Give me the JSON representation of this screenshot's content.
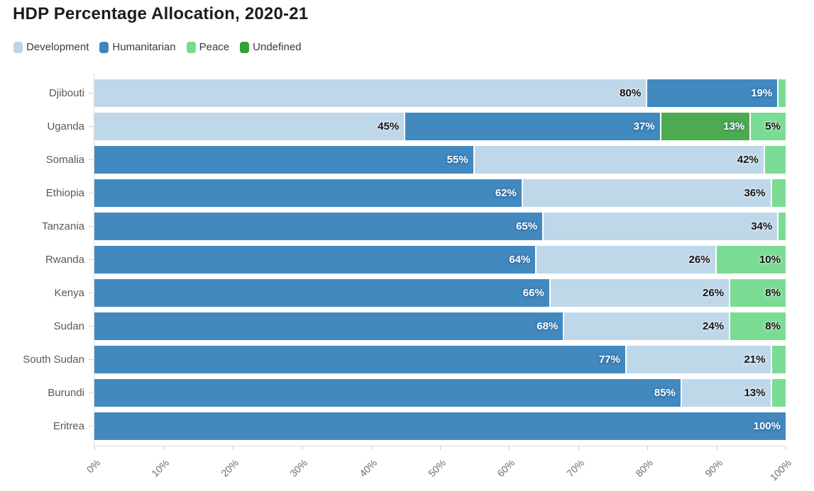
{
  "title": "HDP Percentage Allocation, 2020-21",
  "legend": [
    {
      "key": "development",
      "label": "Development",
      "color": "#b9d5e9"
    },
    {
      "key": "humanitarian",
      "label": "Humanitarian",
      "color": "#3d86c0"
    },
    {
      "key": "peace",
      "label": "Peace",
      "color": "#74db8f"
    },
    {
      "key": "undefined",
      "label": "Undefined",
      "color": "#34a038"
    }
  ],
  "series_colors": {
    "development": "#bed8ea",
    "humanitarian": "#4289c0",
    "peace": "#7adc93",
    "undefined": "#4cab51"
  },
  "series_label_colors": {
    "development": "dark",
    "humanitarian": "light",
    "peace": "dark",
    "undefined": "light"
  },
  "rows": [
    {
      "country": "Djibouti",
      "segments": [
        {
          "series": "development",
          "pct": 80,
          "label": "80%"
        },
        {
          "series": "humanitarian",
          "pct": 19,
          "label": "19%"
        },
        {
          "series": "peace",
          "pct": 1,
          "label": ""
        }
      ]
    },
    {
      "country": "Uganda",
      "segments": [
        {
          "series": "development",
          "pct": 45,
          "label": "45%"
        },
        {
          "series": "humanitarian",
          "pct": 37,
          "label": "37%"
        },
        {
          "series": "undefined",
          "pct": 13,
          "label": "13%"
        },
        {
          "series": "peace",
          "pct": 5,
          "label": "5%"
        }
      ]
    },
    {
      "country": "Somalia",
      "segments": [
        {
          "series": "humanitarian",
          "pct": 55,
          "label": "55%"
        },
        {
          "series": "development",
          "pct": 42,
          "label": "42%"
        },
        {
          "series": "peace",
          "pct": 3,
          "label": ""
        }
      ]
    },
    {
      "country": "Ethiopia",
      "segments": [
        {
          "series": "humanitarian",
          "pct": 62,
          "label": "62%"
        },
        {
          "series": "development",
          "pct": 36,
          "label": "36%"
        },
        {
          "series": "peace",
          "pct": 2,
          "label": ""
        }
      ]
    },
    {
      "country": "Tanzania",
      "segments": [
        {
          "series": "humanitarian",
          "pct": 65,
          "label": "65%"
        },
        {
          "series": "development",
          "pct": 34,
          "label": "34%"
        },
        {
          "series": "peace",
          "pct": 1,
          "label": ""
        }
      ]
    },
    {
      "country": "Rwanda",
      "segments": [
        {
          "series": "humanitarian",
          "pct": 64,
          "label": "64%"
        },
        {
          "series": "development",
          "pct": 26,
          "label": "26%"
        },
        {
          "series": "peace",
          "pct": 10,
          "label": "10%"
        }
      ]
    },
    {
      "country": "Kenya",
      "segments": [
        {
          "series": "humanitarian",
          "pct": 66,
          "label": "66%"
        },
        {
          "series": "development",
          "pct": 26,
          "label": "26%"
        },
        {
          "series": "peace",
          "pct": 8,
          "label": "8%"
        }
      ]
    },
    {
      "country": "Sudan",
      "segments": [
        {
          "series": "humanitarian",
          "pct": 68,
          "label": "68%"
        },
        {
          "series": "development",
          "pct": 24,
          "label": "24%"
        },
        {
          "series": "peace",
          "pct": 8,
          "label": "8%"
        }
      ]
    },
    {
      "country": "South Sudan",
      "segments": [
        {
          "series": "humanitarian",
          "pct": 77,
          "label": "77%"
        },
        {
          "series": "development",
          "pct": 21,
          "label": "21%"
        },
        {
          "series": "peace",
          "pct": 2,
          "label": ""
        }
      ]
    },
    {
      "country": "Burundi",
      "segments": [
        {
          "series": "humanitarian",
          "pct": 85,
          "label": "85%"
        },
        {
          "series": "development",
          "pct": 13,
          "label": "13%"
        },
        {
          "series": "peace",
          "pct": 2,
          "label": ""
        }
      ]
    },
    {
      "country": "Eritrea",
      "segments": [
        {
          "series": "humanitarian",
          "pct": 100,
          "label": "100%"
        }
      ]
    }
  ],
  "chart_data": {
    "type": "bar",
    "stacked": true,
    "orientation": "horizontal",
    "title": "HDP Percentage Allocation, 2020-21",
    "categories": [
      "Djibouti",
      "Uganda",
      "Somalia",
      "Ethiopia",
      "Tanzania",
      "Rwanda",
      "Kenya",
      "Sudan",
      "South Sudan",
      "Burundi",
      "Eritrea"
    ],
    "series": [
      {
        "name": "Development",
        "values": [
          80,
          45,
          42,
          36,
          34,
          26,
          26,
          24,
          21,
          13,
          0
        ]
      },
      {
        "name": "Humanitarian",
        "values": [
          19,
          37,
          55,
          62,
          65,
          64,
          66,
          68,
          77,
          85,
          100
        ]
      },
      {
        "name": "Peace",
        "values": [
          1,
          5,
          3,
          2,
          1,
          10,
          8,
          8,
          2,
          2,
          0
        ]
      },
      {
        "name": "Undefined",
        "values": [
          0,
          13,
          0,
          0,
          0,
          0,
          0,
          0,
          0,
          0,
          0
        ]
      }
    ],
    "xlabel": "",
    "ylabel": "",
    "xlim": [
      0,
      100
    ],
    "x_ticks": [
      "0%",
      "10%",
      "20%",
      "30%",
      "40%",
      "50%",
      "60%",
      "70%",
      "80%",
      "90%",
      "100%"
    ],
    "x_tick_rotation": -45,
    "legend_position": "top",
    "grid": false,
    "note": "Segments within each bar are ordered by descending value; labels hidden on segments below 5%"
  }
}
